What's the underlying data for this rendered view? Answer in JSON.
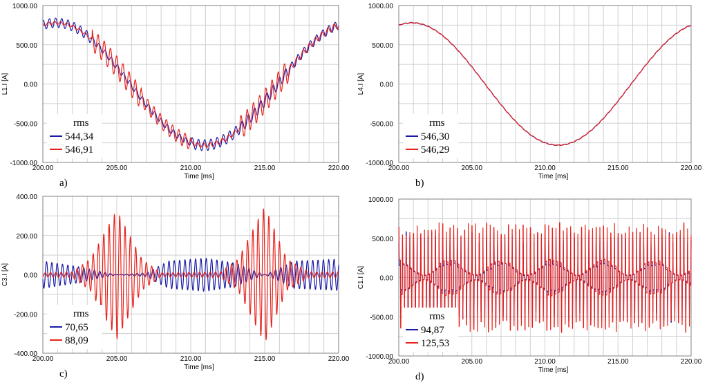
{
  "chart_data": [
    {
      "type": "line",
      "panel_label": "a)",
      "xlabel": "Time [ms]",
      "ylabel": "L1.I [A]",
      "xlim": [
        200,
        220
      ],
      "ylim": [
        -1000,
        1000
      ],
      "xticks": [
        "200.00",
        "205.00",
        "210.00",
        "215.00",
        "220.00"
      ],
      "yticks": [
        "1000.00",
        "500.00",
        "0.00",
        "-500.00",
        "-1000.00"
      ],
      "grid": true,
      "legend_title": "rms",
      "legend_position": "bottom-left",
      "series": [
        {
          "value_label": "544,34",
          "color": "#1a1aa6",
          "amplitude": 780,
          "ripple": [
            60,
            40,
            40,
            70,
            70,
            55
          ]
        },
        {
          "value_label": "546,91",
          "color": "#e8211a",
          "amplitude": 780,
          "ripple": [
            20,
            140,
            90,
            30,
            150,
            40
          ]
        }
      ]
    },
    {
      "type": "line",
      "panel_label": "b)",
      "xlabel": "Time [ms]",
      "ylabel": "L4.I [A]",
      "xlim": [
        200,
        220
      ],
      "ylim": [
        -1000,
        1000
      ],
      "xticks": [
        "200.00",
        "205.00",
        "210.00",
        "215.00",
        "220.00"
      ],
      "yticks": [
        "1000.00",
        "500.00",
        "0.00",
        "-500.00",
        "-1000.00"
      ],
      "grid": true,
      "legend_title": "rms",
      "legend_position": "bottom-left",
      "series": [
        {
          "value_label": "546,30",
          "color": "#1a1aa6",
          "amplitude": 780,
          "ripple": [
            4,
            4,
            4,
            4,
            4,
            4
          ]
        },
        {
          "value_label": "546,29",
          "color": "#e8211a",
          "amplitude": 780,
          "ripple": [
            5,
            5,
            5,
            5,
            5,
            5
          ]
        }
      ]
    },
    {
      "type": "line",
      "panel_label": "c)",
      "xlabel": "Time [ms]",
      "ylabel": "C3.I [A]",
      "xlim": [
        200,
        220
      ],
      "ylim": [
        -400,
        400
      ],
      "xticks": [
        "200.00",
        "205.00",
        "210.00",
        "215.00",
        "220.00"
      ],
      "yticks": [
        "400.00",
        "200.00",
        "0.00",
        "-200.00",
        "-400.00"
      ],
      "grid": true,
      "legend_title": "rms",
      "legend_position": "bottom-left",
      "series": [
        {
          "value_label": "70,65",
          "color": "#1a1aa6",
          "amplitude": 0,
          "envelope": [
            [
              200,
              70
            ],
            [
              202.5,
              40
            ],
            [
              205,
              0
            ],
            [
              207,
              10
            ],
            [
              208.5,
              70
            ],
            [
              211,
              85
            ],
            [
              213,
              60
            ],
            [
              215,
              0
            ],
            [
              217,
              70
            ],
            [
              220,
              80
            ]
          ]
        },
        {
          "value_label": "88,09",
          "color": "#e8211a",
          "amplitude": 0,
          "envelope": [
            [
              200,
              10
            ],
            [
              202,
              15
            ],
            [
              203.2,
              80
            ],
            [
              205,
              330
            ],
            [
              206.7,
              80
            ],
            [
              208,
              10
            ],
            [
              212,
              15
            ],
            [
              213.2,
              80
            ],
            [
              215,
              350
            ],
            [
              216.5,
              80
            ],
            [
              218,
              15
            ],
            [
              220,
              15
            ]
          ]
        }
      ]
    },
    {
      "type": "line",
      "panel_label": "d)",
      "xlabel": "Time [ms]",
      "ylabel": "C1.I [A]",
      "xlim": [
        200,
        220
      ],
      "ylim": [
        -1000,
        1000
      ],
      "xticks": [
        "200.00",
        "205.00",
        "210.00",
        "215.00",
        "220.00"
      ],
      "yticks": [
        "1000.00",
        "500.00",
        "0.00",
        "-500.00",
        "-1000.00"
      ],
      "grid": true,
      "legend_title": "rms",
      "legend_position": "bottom-left",
      "series": [
        {
          "value_label": "94,87",
          "color": "#1a1aa6",
          "amplitude": 0,
          "envelope": [
            [
              200,
              650
            ],
            [
              220,
              650
            ]
          ]
        },
        {
          "value_label": "125,53",
          "color": "#e8211a",
          "amplitude": 0,
          "envelope": [
            [
              200,
              700
            ],
            [
              220,
              700
            ]
          ]
        }
      ]
    }
  ]
}
